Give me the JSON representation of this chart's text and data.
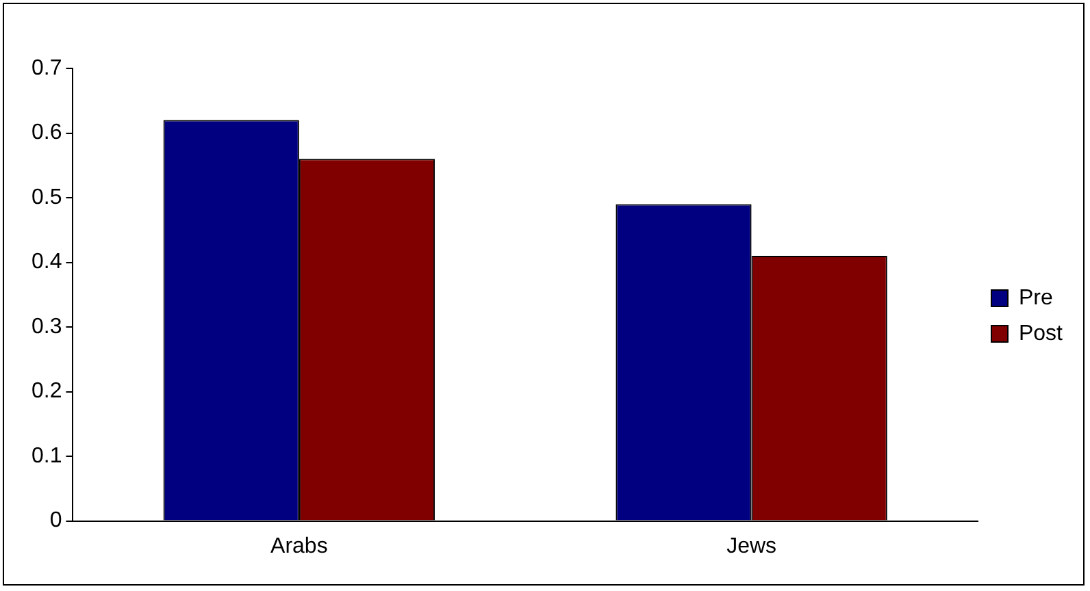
{
  "chart_data": {
    "type": "bar",
    "categories": [
      "Arabs",
      "Jews"
    ],
    "series": [
      {
        "name": "Pre",
        "color": "#000080",
        "values": [
          0.62,
          0.49
        ]
      },
      {
        "name": "Post",
        "color": "#800000",
        "values": [
          0.56,
          0.41
        ]
      }
    ],
    "ylim": [
      0,
      0.7
    ],
    "yticks": [
      0,
      0.1,
      0.2,
      0.3,
      0.4,
      0.5,
      0.6,
      0.7
    ],
    "grid": false,
    "legend": "right"
  }
}
